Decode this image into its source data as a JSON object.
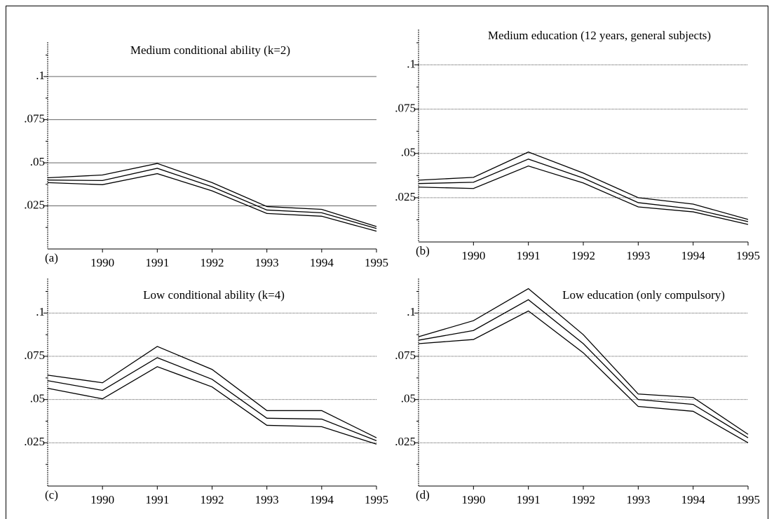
{
  "chart_data": [
    {
      "type": "line",
      "title": "Medium conditional ability (k=2)",
      "panel_label": "(a)",
      "x": [
        1989,
        1990,
        1991,
        1992,
        1993,
        1994,
        1995
      ],
      "series": [
        {
          "color": "#000000",
          "values": [
            0.0413,
            0.0429,
            0.0496,
            0.0385,
            0.0246,
            0.023,
            0.013
          ]
        },
        {
          "color": "#000000",
          "values": [
            0.04,
            0.0397,
            0.0468,
            0.0361,
            0.0226,
            0.021,
            0.0119
          ]
        },
        {
          "color": "#000000",
          "values": [
            0.0385,
            0.0373,
            0.0437,
            0.0337,
            0.0206,
            0.019,
            0.0103
          ]
        }
      ],
      "xlim": [
        1989,
        1995
      ],
      "xticks": [
        1990,
        1991,
        1992,
        1993,
        1994,
        1995
      ],
      "ylim": [
        0,
        0.12
      ],
      "yticks": [
        {
          "value": 0.025,
          "label": ".025"
        },
        {
          "value": 0.05,
          "label": ".05"
        },
        {
          "value": 0.075,
          "label": ".075"
        },
        {
          "value": 0.1,
          "label": ".1"
        }
      ],
      "yminorticks": [
        0.0125,
        0.0375,
        0.0625,
        0.0875,
        0.1125
      ],
      "grid": true,
      "grid_style": "solid"
    },
    {
      "type": "line",
      "title": "Medium education (12 years, general subjects)",
      "panel_label": "(b)",
      "x": [
        1989,
        1990,
        1991,
        1992,
        1993,
        1994,
        1995
      ],
      "series": [
        {
          "color": "#000000",
          "values": [
            0.0349,
            0.0365,
            0.0508,
            0.0389,
            0.025,
            0.0214,
            0.0127
          ]
        },
        {
          "color": "#000000",
          "values": [
            0.033,
            0.0337,
            0.0468,
            0.0361,
            0.0222,
            0.0186,
            0.0115
          ]
        },
        {
          "color": "#000000",
          "values": [
            0.031,
            0.0302,
            0.0429,
            0.0333,
            0.0198,
            0.017,
            0.0099
          ]
        }
      ],
      "xlim": [
        1989,
        1995
      ],
      "xticks": [
        1990,
        1991,
        1992,
        1993,
        1994,
        1995
      ],
      "ylim": [
        0,
        0.12
      ],
      "yticks": [
        {
          "value": 0.025,
          "label": ".025"
        },
        {
          "value": 0.05,
          "label": ".05"
        },
        {
          "value": 0.075,
          "label": ".075"
        },
        {
          "value": 0.1,
          "label": ".1"
        }
      ],
      "yminorticks": [
        0.0125,
        0.0375,
        0.0625,
        0.0875,
        0.1125
      ],
      "grid": true,
      "grid_style": "dotted"
    },
    {
      "type": "line",
      "title": "Low conditional ability (k=4)",
      "panel_label": "(c)",
      "x": [
        1989,
        1990,
        1991,
        1992,
        1993,
        1994,
        1995
      ],
      "series": [
        {
          "color": "#000000",
          "values": [
            0.0641,
            0.0597,
            0.0807,
            0.0674,
            0.0436,
            0.0436,
            0.0279
          ]
        },
        {
          "color": "#000000",
          "values": [
            0.0609,
            0.0553,
            0.0742,
            0.0617,
            0.0392,
            0.0387,
            0.0262
          ]
        },
        {
          "color": "#000000",
          "values": [
            0.0565,
            0.0504,
            0.069,
            0.0573,
            0.0351,
            0.0343,
            0.0242
          ]
        }
      ],
      "xlim": [
        1989,
        1995
      ],
      "xticks": [
        1990,
        1991,
        1992,
        1993,
        1994,
        1995
      ],
      "ylim": [
        0,
        0.12
      ],
      "yticks": [
        {
          "value": 0.025,
          "label": ".025"
        },
        {
          "value": 0.05,
          "label": ".05"
        },
        {
          "value": 0.075,
          "label": ".075"
        },
        {
          "value": 0.1,
          "label": ".1"
        }
      ],
      "yminorticks": [
        0.0125,
        0.0375,
        0.0625,
        0.0875,
        0.1125
      ],
      "grid": true,
      "grid_style": "dotted"
    },
    {
      "type": "line",
      "title": "Low education (only compulsory)",
      "panel_label": "(d)",
      "x": [
        1989,
        1990,
        1991,
        1992,
        1993,
        1994,
        1995
      ],
      "series": [
        {
          "color": "#000000",
          "values": [
            0.0863,
            0.0956,
            0.1141,
            0.0875,
            0.0532,
            0.0512,
            0.0299
          ]
        },
        {
          "color": "#000000",
          "values": [
            0.0843,
            0.0899,
            0.1077,
            0.0823,
            0.05,
            0.0472,
            0.0279
          ]
        },
        {
          "color": "#000000",
          "values": [
            0.0823,
            0.0847,
            0.1012,
            0.077,
            0.046,
            0.0432,
            0.025
          ]
        }
      ],
      "xlim": [
        1989,
        1995
      ],
      "xticks": [
        1990,
        1991,
        1992,
        1993,
        1994,
        1995
      ],
      "ylim": [
        0,
        0.12
      ],
      "yticks": [
        {
          "value": 0.025,
          "label": ".025"
        },
        {
          "value": 0.05,
          "label": ".05"
        },
        {
          "value": 0.075,
          "label": ".075"
        },
        {
          "value": 0.1,
          "label": ".1"
        }
      ],
      "yminorticks": [
        0.0125,
        0.0375,
        0.0625,
        0.0875,
        0.1125
      ],
      "grid": true,
      "grid_style": "dotted"
    }
  ]
}
